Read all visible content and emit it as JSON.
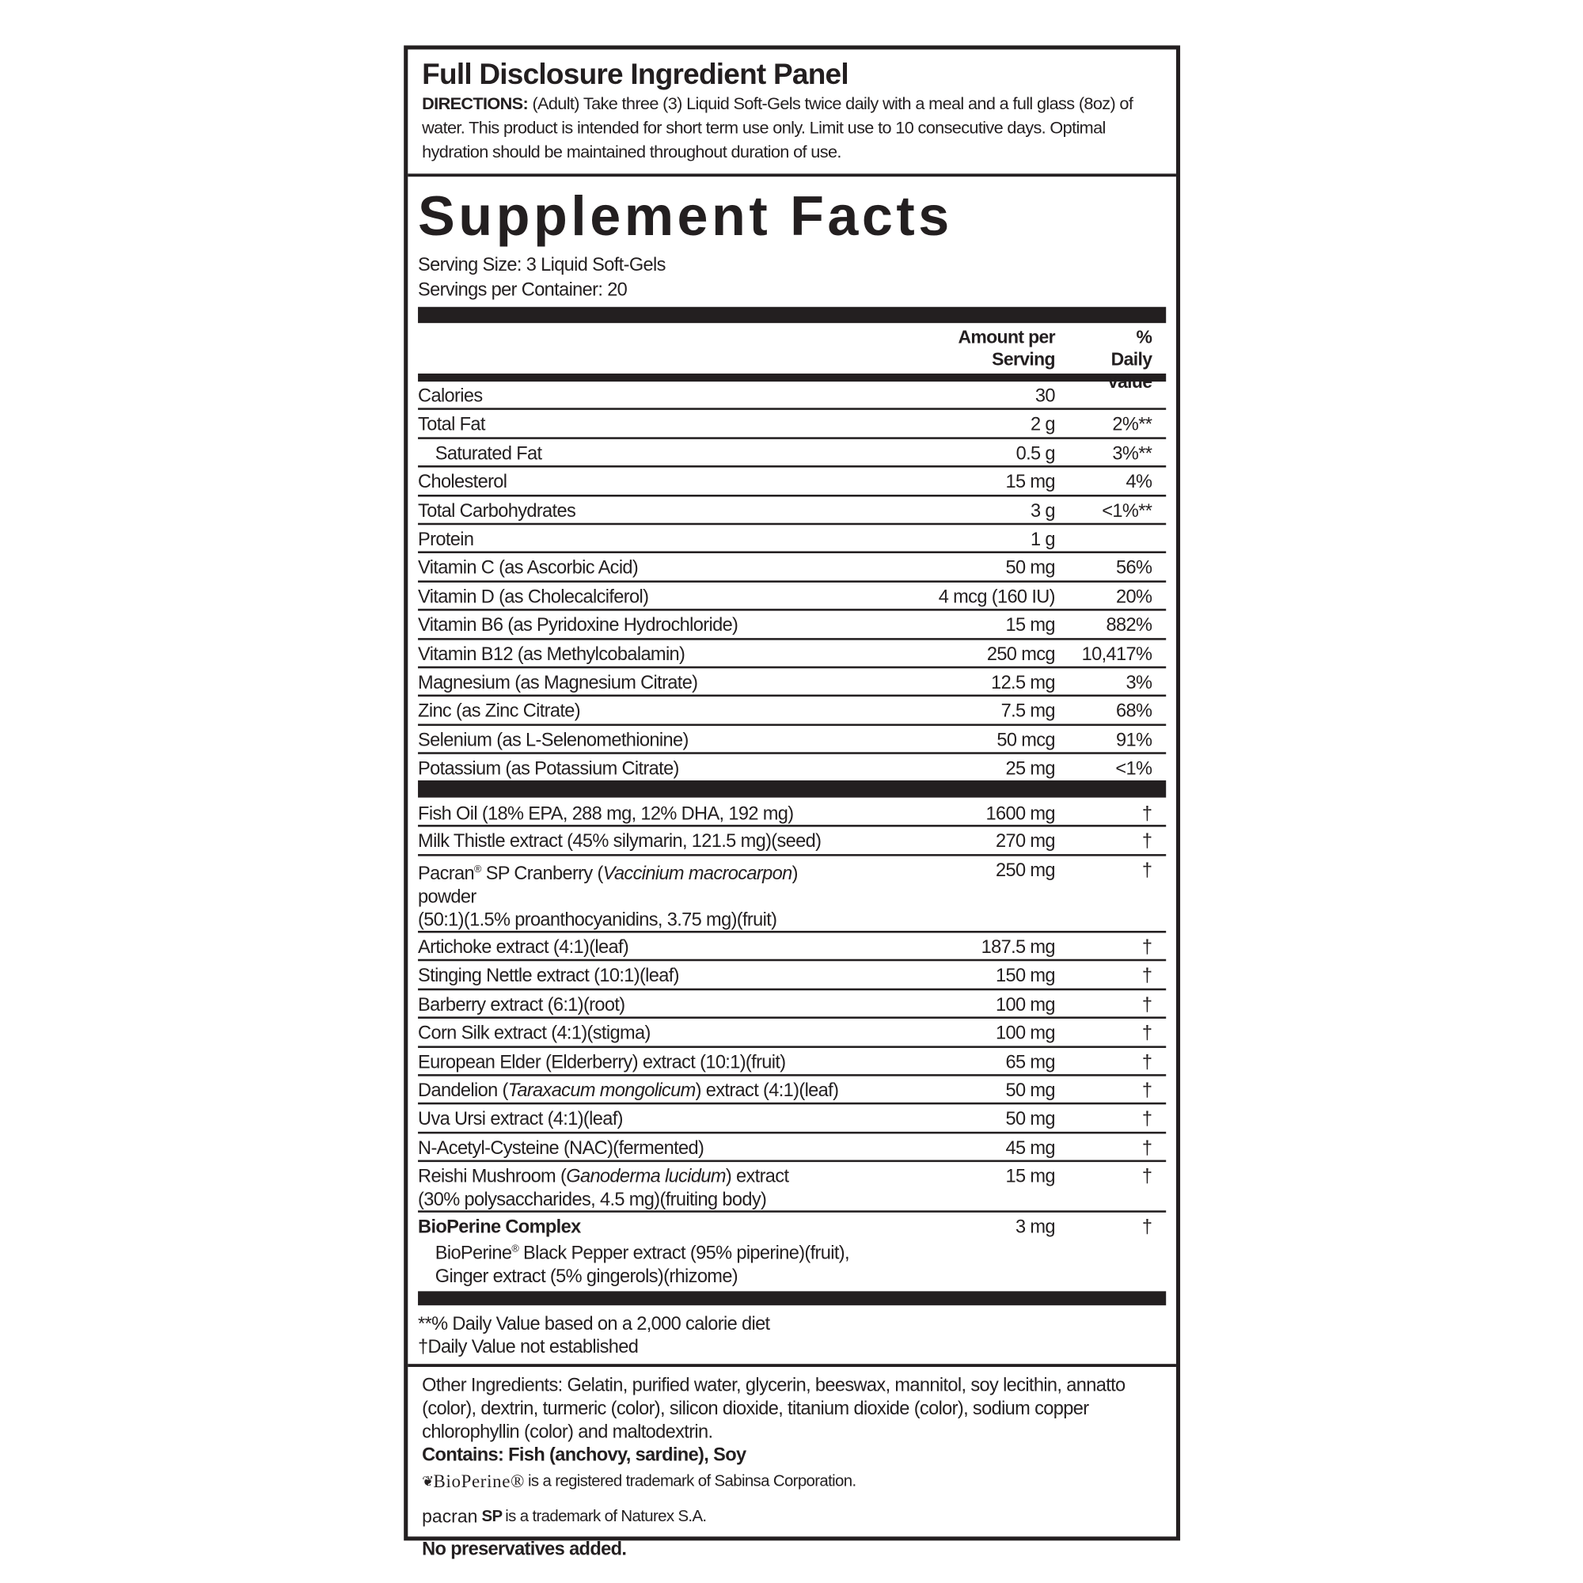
{
  "panel_title": "Full Disclosure Ingredient Panel",
  "directions_label": "DIRECTIONS:",
  "directions_text": " (Adult) Take three (3) Liquid Soft-Gels twice daily with a meal and a full glass (8oz) of water. This product is intended for short term use only. Limit use to 10 consecutive days. Optimal hydration should be maintained throughout duration of use.",
  "facts_title": "Supplement Facts",
  "serving_size": "Serving Size:  3 Liquid Soft-Gels",
  "servings_per_container": "Servings per Container:  20",
  "header": {
    "amount": "Amount per Serving",
    "dv": "% Daily Value"
  },
  "nutrients": [
    {
      "name": "Calories",
      "amount": "30",
      "dv": ""
    },
    {
      "name": "Total Fat",
      "amount": "2 g",
      "dv": "2%**"
    },
    {
      "name": "Saturated Fat",
      "amount": "0.5 g",
      "dv": "3%**",
      "indent": true
    },
    {
      "name": "Cholesterol",
      "amount": "15 mg",
      "dv": "4%"
    },
    {
      "name": "Total Carbohydrates",
      "amount": "3 g",
      "dv": "<1%**"
    },
    {
      "name": "Protein",
      "amount": "1 g",
      "dv": ""
    },
    {
      "name": "Vitamin C (as Ascorbic Acid)",
      "amount": "50 mg",
      "dv": "56%"
    },
    {
      "name": "Vitamin D (as Cholecalciferol)",
      "amount": "4 mcg (160 IU)",
      "dv": "20%"
    },
    {
      "name": "Vitamin B6 (as Pyridoxine Hydrochloride)",
      "amount": "15 mg",
      "dv": "882%"
    },
    {
      "name": "Vitamin B12 (as Methylcobalamin)",
      "amount": "250 mcg",
      "dv": "10,417%"
    },
    {
      "name": "Magnesium (as Magnesium Citrate)",
      "amount": "12.5 mg",
      "dv": "3%"
    },
    {
      "name": "Zinc (as Zinc Citrate)",
      "amount": "7.5 mg",
      "dv": "68%"
    },
    {
      "name": "Selenium (as L-Selenomethionine)",
      "amount": "50 mcg",
      "dv": "91%"
    },
    {
      "name": "Potassium (as Potassium Citrate)",
      "amount": "25 mg",
      "dv": "<1%"
    }
  ],
  "ingredients": [
    {
      "html": "Fish Oil (18% EPA, 288 mg, 12% DHA, 192 mg)",
      "amount": "1600 mg",
      "dv": "†"
    },
    {
      "html": "Milk Thistle extract (45% silymarin, 121.5 mg)(seed)",
      "amount": "270 mg",
      "dv": "†"
    },
    {
      "html": "Pacran<sup>®</sup> SP Cranberry (<i>Vaccinium macrocarpon</i>) powder<br>(50:1)(1.5% proanthocyanidins, 3.75 mg)(fruit)",
      "amount": "250 mg",
      "dv": "†"
    },
    {
      "html": "Artichoke extract (4:1)(leaf)",
      "amount": "187.5 mg",
      "dv": "†"
    },
    {
      "html": "Stinging Nettle extract (10:1)(leaf)",
      "amount": "150 mg",
      "dv": "†"
    },
    {
      "html": "Barberry extract (6:1)(root)",
      "amount": "100 mg",
      "dv": "†"
    },
    {
      "html": "Corn Silk extract (4:1)(stigma)",
      "amount": "100 mg",
      "dv": "†"
    },
    {
      "html": "European Elder (Elderberry) extract (10:1)(fruit)",
      "amount": "65 mg",
      "dv": "†"
    },
    {
      "html": "Dandelion (<i>Taraxacum mongolicum</i>) extract (4:1)(leaf)",
      "amount": "50 mg",
      "dv": "†"
    },
    {
      "html": "Uva Ursi extract (4:1)(leaf)",
      "amount": "50 mg",
      "dv": "†"
    },
    {
      "html": "N-Acetyl-Cysteine (NAC)(fermented)",
      "amount": "45 mg",
      "dv": "†"
    },
    {
      "html": "Reishi Mushroom (<i>Ganoderma lucidum</i>) extract<br>(30% polysaccharides, 4.5 mg)(fruiting body)",
      "amount": "15 mg",
      "dv": "†"
    },
    {
      "html": "<b>BioPerine Complex</b><br><span class='ind'>BioPerine<sup>®</sup> Black Pepper extract (95% piperine)(fruit),</span><br><span class='ind'>Ginger extract (5% gingerols)(rhizome)</span>",
      "amount": "3 mg",
      "dv": "†",
      "last": true
    }
  ],
  "footnotes": [
    "**% Daily Value based on a 2,000 calorie diet",
    "†Daily Value not established"
  ],
  "other_ingredients": "Other Ingredients:  Gelatin, purified water, glycerin, beeswax, mannitol, soy lecithin, annatto (color), dextrin, turmeric (color), silicon dioxide, titanium dioxide (color), sodium copper chlorophyllin (color) and maltodextrin.",
  "contains": "Contains: Fish (anchovy, sardine), Soy",
  "bioperine_logo": "BioPerine®",
  "bioperine_tm": "is a registered trademark of Sabinsa Corporation.",
  "pacran_logo": "pacran",
  "pacran_sp": "SP",
  "pacran_tm": "is a trademark of Naturex S.A.",
  "no_preservatives": "No preservatives added."
}
